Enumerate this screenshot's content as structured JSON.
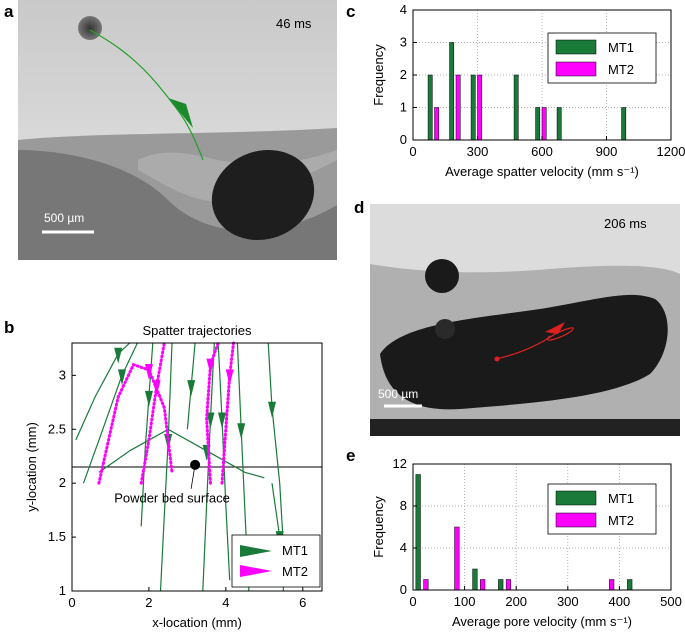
{
  "panels": {
    "a": {
      "letter": "a",
      "time": "46 ms",
      "scale_label": "500 µm"
    },
    "b": {
      "letter": "b",
      "title": "Spatter trajectories",
      "annotation": "Powder bed surface",
      "x_axis_label": "x-location (mm)",
      "y_axis_label": "y-location (mm)"
    },
    "c": {
      "letter": "c",
      "x_axis_label": "Average spatter velocity (mm s⁻¹)",
      "y_axis_label": "Frequency"
    },
    "d": {
      "letter": "d",
      "time": "206 ms",
      "scale_label": "500 µm"
    },
    "e": {
      "letter": "e",
      "x_axis_label": "Average pore velocity (mm s⁻¹)",
      "y_axis_label": "Frequency"
    }
  },
  "colors": {
    "mt1": "#1a7a3a",
    "mt2": "#ff00ff",
    "trajectory_red": "#e02020"
  },
  "chart_data": [
    {
      "id": "c",
      "type": "bar",
      "xlabel": "Average spatter velocity (mm s⁻¹)",
      "ylabel": "Frequency",
      "xlim": [
        0,
        1200
      ],
      "ylim": [
        0,
        4
      ],
      "xticks": [
        0,
        300,
        600,
        900,
        1200
      ],
      "yticks": [
        0,
        1,
        2,
        3,
        4
      ],
      "grid": true,
      "legend_position": "top-right",
      "bar_width": 20,
      "series": [
        {
          "name": "MT1",
          "x": [
            80,
            180,
            280,
            480,
            580,
            680,
            980
          ],
          "values": [
            2,
            3,
            2,
            2,
            1,
            1,
            1
          ]
        },
        {
          "name": "MT2",
          "x": [
            110,
            210,
            310,
            610
          ],
          "values": [
            1,
            2,
            2,
            1
          ]
        }
      ]
    },
    {
      "id": "e",
      "type": "bar",
      "xlabel": "Average pore velocity (mm s⁻¹)",
      "ylabel": "Frequency",
      "xlim": [
        0,
        500
      ],
      "ylim": [
        0,
        12
      ],
      "xticks": [
        0,
        100,
        200,
        300,
        400,
        500
      ],
      "yticks": [
        0,
        4,
        8,
        12
      ],
      "grid": true,
      "legend_position": "top-right",
      "bar_width": 9,
      "series": [
        {
          "name": "MT1",
          "x": [
            10,
            70,
            120,
            170,
            420
          ],
          "values": [
            11,
            0,
            2,
            1,
            1
          ]
        },
        {
          "name": "MT2",
          "x": [
            25,
            85,
            135,
            185,
            385
          ],
          "values": [
            1,
            6,
            1,
            1,
            1
          ]
        }
      ]
    },
    {
      "id": "b",
      "type": "line",
      "title": "Spatter trajectories",
      "xlabel": "x-location (mm)",
      "ylabel": "y-location (mm)",
      "xlim": [
        0,
        6.5
      ],
      "ylim": [
        1,
        3.3
      ],
      "xticks": [
        0,
        2,
        4,
        6
      ],
      "yticks": [
        1,
        1.5,
        2,
        2.5,
        3
      ],
      "grid": false,
      "legend_position": "bottom-right",
      "baseline_y": 2.15,
      "marker_point": [
        3.2,
        2.17
      ],
      "series": [
        {
          "name": "MT1",
          "lines": [
            [
              [
                0.1,
                2.4
              ],
              [
                0.6,
                2.8
              ],
              [
                1.2,
                3.2
              ],
              [
                1.5,
                3.3
              ]
            ],
            [
              [
                0.3,
                2.0
              ],
              [
                0.8,
                2.5
              ],
              [
                1.3,
                3.0
              ],
              [
                1.7,
                3.3
              ]
            ],
            [
              [
                1.8,
                1.6
              ],
              [
                1.9,
                2.3
              ],
              [
                2.0,
                2.8
              ],
              [
                2.1,
                3.3
              ]
            ],
            [
              [
                2.3,
                1.0
              ],
              [
                2.4,
                1.7
              ],
              [
                2.5,
                2.4
              ],
              [
                2.6,
                3.3
              ]
            ],
            [
              [
                3.0,
                2.5
              ],
              [
                3.1,
                2.9
              ],
              [
                3.2,
                3.3
              ]
            ],
            [
              [
                3.4,
                1.0
              ],
              [
                3.5,
                1.8
              ],
              [
                3.6,
                2.6
              ],
              [
                3.7,
                3.3
              ]
            ],
            [
              [
                4.1,
                1.1
              ],
              [
                4.0,
                1.8
              ],
              [
                3.9,
                2.6
              ],
              [
                3.8,
                3.3
              ]
            ],
            [
              [
                4.6,
                1.0
              ],
              [
                4.5,
                1.7
              ],
              [
                4.4,
                2.5
              ],
              [
                4.3,
                3.3
              ]
            ],
            [
              [
                5.5,
                1.4
              ],
              [
                5.4,
                2.0
              ],
              [
                5.2,
                2.7
              ],
              [
                5.1,
                3.3
              ]
            ],
            [
              [
                0.7,
                2.1
              ],
              [
                1.5,
                2.3
              ],
              [
                2.5,
                2.5
              ],
              [
                3.5,
                2.3
              ],
              [
                4.5,
                2.1
              ],
              [
                5.0,
                2.05
              ]
            ],
            [
              [
                5.2,
                2.0
              ],
              [
                5.4,
                1.5
              ],
              [
                5.5,
                1.0
              ]
            ]
          ]
        },
        {
          "name": "MT2",
          "lines": [
            [
              [
                0.7,
                2.0
              ],
              [
                1.2,
                2.8
              ],
              [
                1.6,
                3.1
              ],
              [
                2.0,
                3.05
              ],
              [
                2.4,
                2.7
              ],
              [
                2.6,
                2.1
              ]
            ],
            [
              [
                1.8,
                2.0
              ],
              [
                2.0,
                2.4
              ],
              [
                2.2,
                2.9
              ],
              [
                2.4,
                3.3
              ]
            ],
            [
              [
                3.9,
                2.0
              ],
              [
                4.0,
                2.5
              ],
              [
                4.1,
                3.0
              ],
              [
                4.2,
                3.3
              ]
            ],
            [
              [
                3.6,
                2.0
              ],
              [
                3.5,
                2.6
              ],
              [
                3.6,
                3.1
              ],
              [
                3.8,
                3.3
              ]
            ]
          ]
        }
      ]
    }
  ],
  "legend": {
    "mt1": "MT1",
    "mt2": "MT2"
  }
}
